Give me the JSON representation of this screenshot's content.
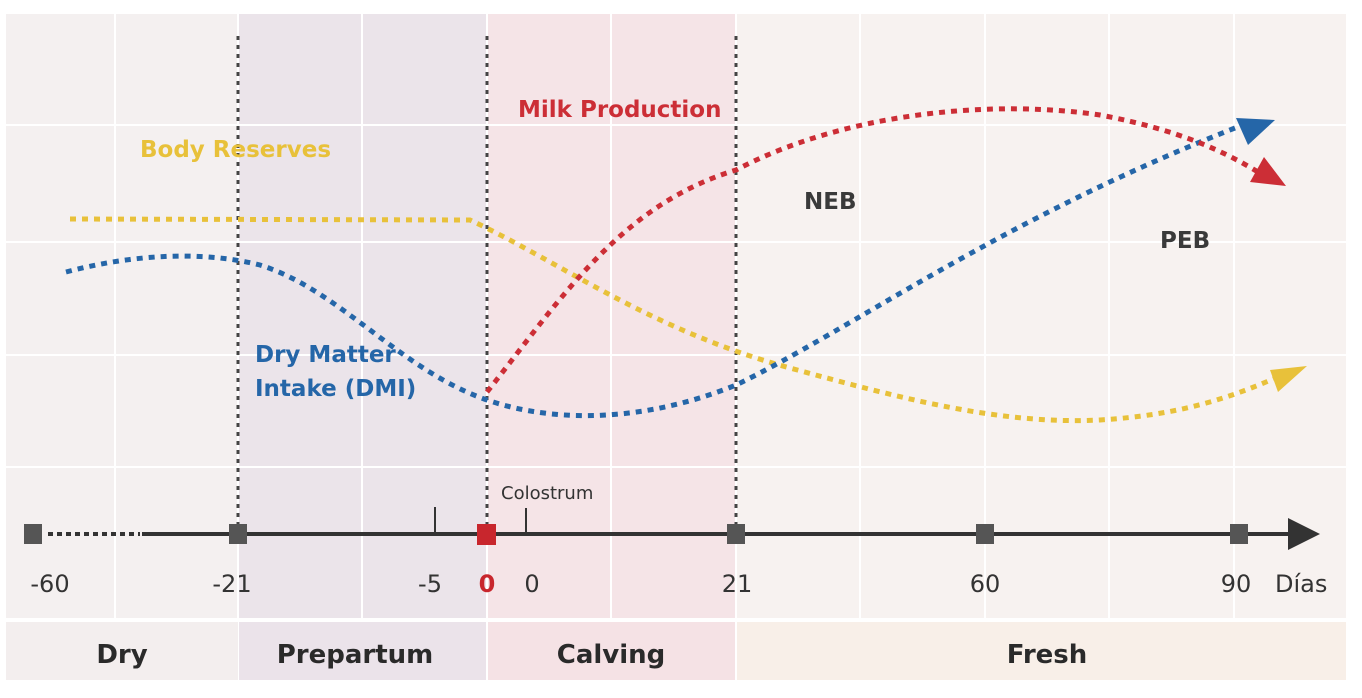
{
  "curves": {
    "body_reserves": {
      "label": "Body Reserves",
      "color": "#e8c13a"
    },
    "dmi": {
      "label_line1": "Dry Matter",
      "label_line2": "Intake (DMI)",
      "color": "#2566a8"
    },
    "milk": {
      "label": "Milk Production",
      "color": "#cc2e36"
    }
  },
  "annotations": {
    "neb": "NEB",
    "peb": "PEB",
    "colostrum": "Colostrum"
  },
  "axis": {
    "unit": "Días",
    "ticks": [
      "-60",
      "-21",
      "-5",
      "0",
      "0",
      "21",
      "60",
      "90"
    ],
    "calving_color": "#c8262d"
  },
  "phases": [
    {
      "label": "Dry",
      "color": "#f3eeee"
    },
    {
      "label": "Prepartum",
      "color": "#ebe3ea"
    },
    {
      "label": "Calving",
      "color": "#f5e2e5"
    },
    {
      "label": "Fresh",
      "color": "#f8efe8"
    }
  ]
}
